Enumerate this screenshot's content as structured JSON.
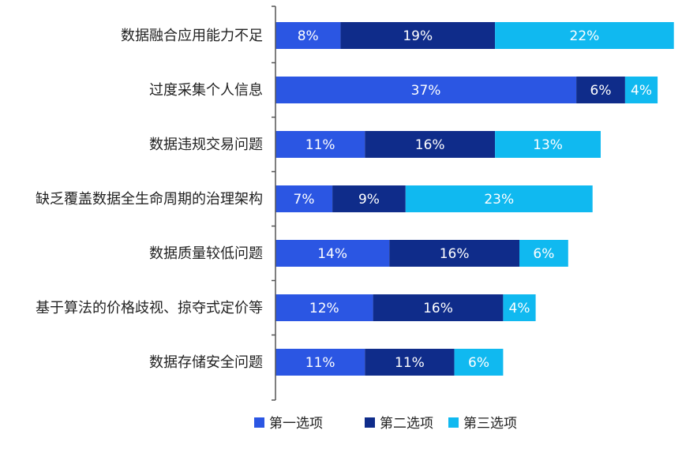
{
  "chart_data": {
    "type": "bar",
    "orientation": "horizontal",
    "stacked": true,
    "categories": [
      "数据融合应用能力不足",
      "过度采集个人信息",
      "数据违规交易问题",
      "缺乏覆盖数据全生命周期的治理架构",
      "数据质量较低问题",
      "基于算法的价格歧视、掠夺式定价等",
      "数据存储安全问题"
    ],
    "series": [
      {
        "name": "第一选项",
        "color": "#2b56e3",
        "text_color": "#ffffff",
        "values": [
          8,
          37,
          11,
          7,
          14,
          12,
          11
        ],
        "labels": [
          "8%",
          "37%",
          "11%",
          "7%",
          "14%",
          "12%",
          "11%"
        ]
      },
      {
        "name": "第二选项",
        "color": "#0f2c8a",
        "text_color": "#ffffff",
        "values": [
          19,
          6,
          16,
          9,
          16,
          16,
          11
        ],
        "labels": [
          "19%",
          "6%",
          "16%",
          "9%",
          "16%",
          "16%",
          "11%"
        ]
      },
      {
        "name": "第三选项",
        "color": "#10b9f0",
        "text_color": "#ffffff",
        "values": [
          22,
          4,
          13,
          23,
          6,
          4,
          6
        ],
        "labels": [
          "22%",
          "4%",
          "13%",
          "23%",
          "6%",
          "4%",
          "6%"
        ]
      }
    ],
    "xlim": [
      0,
      64
    ],
    "grid": false,
    "legend_position": "bottom"
  }
}
